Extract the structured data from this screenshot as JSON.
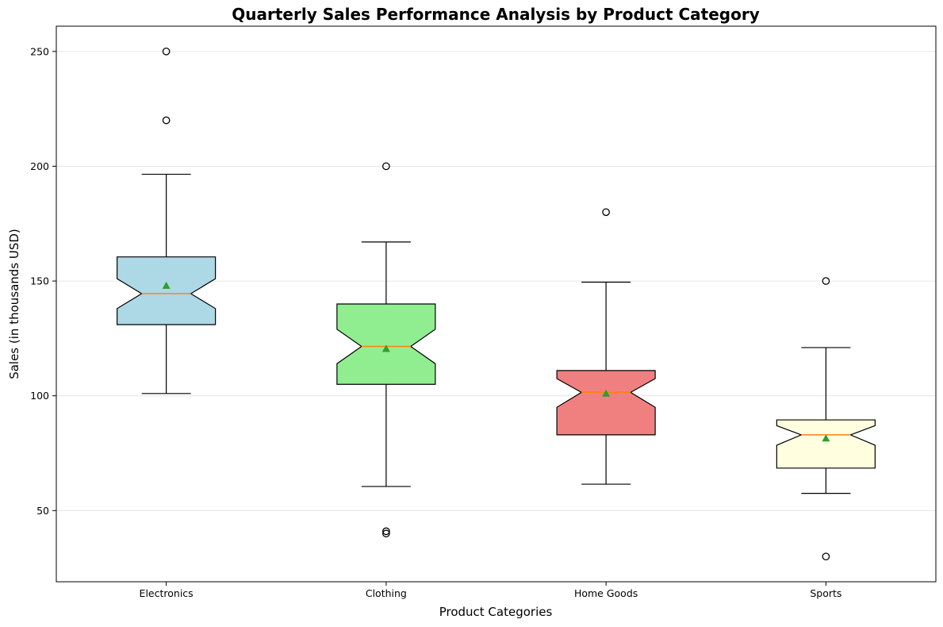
{
  "chart_data": {
    "type": "boxplot",
    "title": "Quarterly Sales Performance Analysis by Product Category",
    "xlabel": "Product Categories",
    "ylabel": "Sales (in thousands USD)",
    "ylim": [
      19,
      261
    ],
    "yticks": [
      50,
      100,
      150,
      200,
      250
    ],
    "grid": "y",
    "notched": true,
    "show_means": true,
    "categories": [
      "Electronics",
      "Clothing",
      "Home Goods",
      "Sports"
    ],
    "boxes": [
      {
        "name": "Electronics",
        "color": "#add8e6",
        "whisker_low": 101,
        "q1": 131,
        "median": 144.5,
        "q3": 160.5,
        "whisker_high": 196.5,
        "mean": 148,
        "notch_low": 138,
        "notch_high": 151,
        "outliers": [
          220,
          250
        ]
      },
      {
        "name": "Clothing",
        "color": "#90ee90",
        "whisker_low": 60.5,
        "q1": 105,
        "median": 121.5,
        "q3": 140,
        "whisker_high": 167,
        "mean": 120.5,
        "notch_low": 114,
        "notch_high": 129,
        "outliers": [
          200,
          41,
          40
        ]
      },
      {
        "name": "Home Goods",
        "color": "#f08080",
        "whisker_low": 61.5,
        "q1": 83,
        "median": 101.5,
        "q3": 111,
        "whisker_high": 149.5,
        "mean": 101,
        "notch_low": 95,
        "notch_high": 107.5,
        "outliers": [
          180
        ]
      },
      {
        "name": "Sports",
        "color": "#ffffe0",
        "whisker_low": 57.5,
        "q1": 68.5,
        "median": 83,
        "q3": 89.5,
        "whisker_high": 121,
        "mean": 81.5,
        "notch_low": 78.5,
        "notch_high": 87,
        "outliers": [
          150,
          30
        ]
      }
    ],
    "median_color": "#ff7f0e",
    "mean_color": "#2ca02c"
  }
}
